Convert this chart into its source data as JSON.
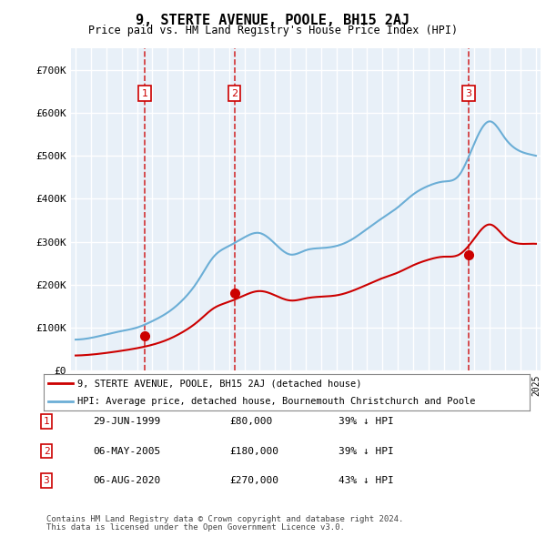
{
  "title": "9, STERTE AVENUE, POOLE, BH15 2AJ",
  "subtitle": "Price paid vs. HM Land Registry's House Price Index (HPI)",
  "ylabel": "",
  "ylim": [
    0,
    750000
  ],
  "yticks": [
    0,
    100000,
    200000,
    300000,
    400000,
    500000,
    600000,
    700000
  ],
  "ytick_labels": [
    "£0",
    "£100K",
    "£200K",
    "£300K",
    "£400K",
    "£500K",
    "£600K",
    "£700K"
  ],
  "bg_color": "#e8f0f8",
  "plot_bg_color": "#e8f0f8",
  "grid_color": "#ffffff",
  "hpi_color": "#6baed6",
  "price_color": "#cc0000",
  "marker_color": "#cc0000",
  "sale_dates": [
    "1999-06-29",
    "2005-05-06",
    "2020-08-06"
  ],
  "sale_prices": [
    80000,
    180000,
    270000
  ],
  "sale_labels": [
    "1",
    "2",
    "3"
  ],
  "sale_info": [
    {
      "num": "1",
      "date": "29-JUN-1999",
      "price": "£80,000",
      "hpi": "39% ↓ HPI"
    },
    {
      "num": "2",
      "date": "06-MAY-2005",
      "price": "£180,000",
      "hpi": "39% ↓ HPI"
    },
    {
      "num": "3",
      "date": "06-AUG-2020",
      "price": "£270,000",
      "hpi": "43% ↓ HPI"
    }
  ],
  "legend_line1": "9, STERTE AVENUE, POOLE, BH15 2AJ (detached house)",
  "legend_line2": "HPI: Average price, detached house, Bournemouth Christchurch and Poole",
  "footer1": "Contains HM Land Registry data © Crown copyright and database right 2024.",
  "footer2": "This data is licensed under the Open Government Licence v3.0.",
  "x_start_year": 1995,
  "x_end_year": 2025,
  "hpi_years": [
    1995,
    1996,
    1997,
    1998,
    1999,
    2000,
    2001,
    2002,
    2003,
    2004,
    2005,
    2006,
    2007,
    2008,
    2009,
    2010,
    2011,
    2012,
    2013,
    2014,
    2015,
    2016,
    2017,
    2018,
    2019,
    2020,
    2021,
    2022,
    2023,
    2024,
    2025
  ],
  "hpi_values": [
    72000,
    76000,
    84000,
    92000,
    100000,
    115000,
    135000,
    165000,
    210000,
    265000,
    290000,
    310000,
    320000,
    295000,
    270000,
    280000,
    285000,
    290000,
    305000,
    330000,
    355000,
    380000,
    410000,
    430000,
    440000,
    455000,
    530000,
    580000,
    540000,
    510000,
    500000
  ],
  "price_years": [
    1995,
    1996,
    1997,
    1998,
    1999,
    2000,
    2001,
    2002,
    2003,
    2004,
    2005,
    2006,
    2007,
    2008,
    2009,
    2010,
    2011,
    2012,
    2013,
    2014,
    2015,
    2016,
    2017,
    2018,
    2019,
    2020,
    2021,
    2022,
    2023,
    2024,
    2025
  ],
  "price_values": [
    35000,
    37000,
    41000,
    46000,
    52000,
    60000,
    72000,
    90000,
    115000,
    145000,
    160000,
    175000,
    185000,
    175000,
    163000,
    168000,
    172000,
    175000,
    185000,
    200000,
    215000,
    228000,
    245000,
    258000,
    265000,
    270000,
    308000,
    340000,
    310000,
    295000,
    295000
  ]
}
